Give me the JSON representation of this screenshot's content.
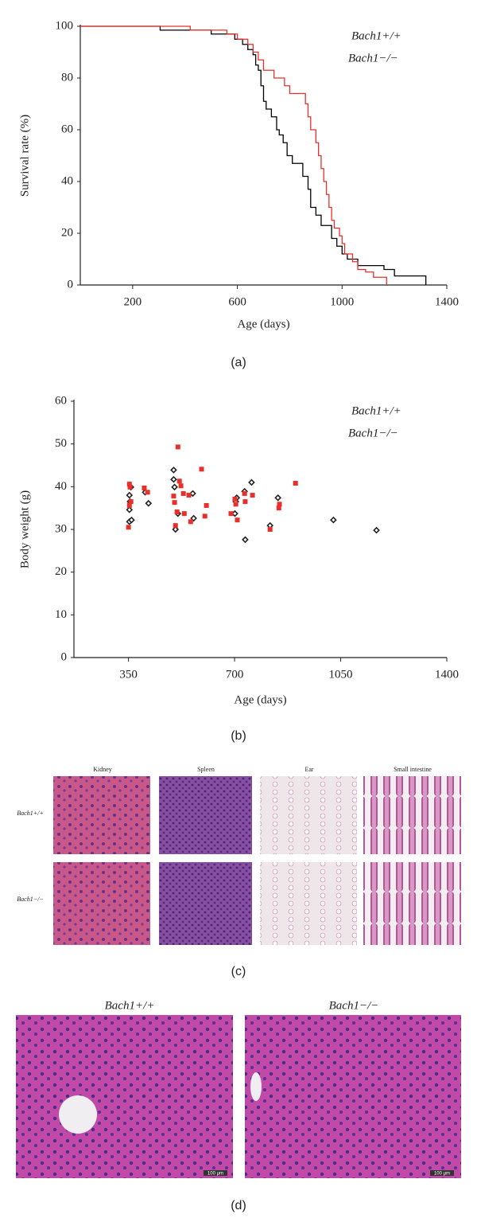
{
  "chart_data": [
    {
      "type": "line",
      "step": true,
      "panel_label": "(a)",
      "x_label": "Age (days)",
      "y_label": "Survival rate (%)",
      "xlim": [
        0,
        1400
      ],
      "xticks": [
        200,
        600,
        1000,
        1400
      ],
      "ylim": [
        0,
        100
      ],
      "yticks": [
        0,
        20,
        40,
        60,
        80,
        100
      ],
      "legend": "upper right",
      "series": [
        {
          "name": "Bach1+/+",
          "color": "#000000",
          "x": [
            0,
            305,
            500,
            590,
            620,
            640,
            660,
            670,
            680,
            690,
            700,
            710,
            730,
            750,
            760,
            775,
            790,
            810,
            850,
            870,
            880,
            900,
            920,
            960,
            980,
            1000,
            1020,
            1060,
            1160,
            1200,
            1320
          ],
          "values": [
            100,
            98.5,
            97,
            95,
            93,
            91,
            89,
            85,
            83,
            77,
            71,
            68,
            65,
            60,
            58,
            55,
            50,
            47,
            42,
            37,
            30,
            27,
            23,
            18,
            15,
            12,
            10,
            7.5,
            6,
            3.5,
            0
          ]
        },
        {
          "name": "Bach1−/−",
          "color": "#e8302a",
          "x": [
            0,
            420,
            560,
            600,
            640,
            660,
            680,
            700,
            740,
            780,
            800,
            860,
            870,
            880,
            900,
            910,
            920,
            930,
            940,
            950,
            960,
            970,
            990,
            1000,
            1010,
            1040,
            1060,
            1090,
            1120,
            1170
          ],
          "values": [
            100,
            98.5,
            97,
            95,
            93,
            90,
            87,
            83,
            80,
            77,
            74,
            70,
            65,
            60,
            55,
            50,
            45,
            40,
            35,
            30,
            25,
            22,
            19,
            16,
            12,
            9,
            6,
            5,
            3,
            0
          ]
        }
      ]
    },
    {
      "type": "scatter",
      "panel_label": "(b)",
      "x_label": "Age (days)",
      "y_label": "Body weight (g)",
      "xlim": [
        170,
        1400
      ],
      "xticks": [
        350,
        700,
        1050,
        1400
      ],
      "ylim": [
        0,
        60
      ],
      "yticks": [
        0,
        10,
        20,
        30,
        40,
        50,
        60
      ],
      "legend": "upper right",
      "series": [
        {
          "name": "Bach1+/+",
          "color": "#222222",
          "marker": "diamond",
          "x": [
            353,
            353,
            353,
            355,
            358,
            360,
            405,
            416,
            499,
            499,
            502,
            505,
            513,
            562,
            565,
            701,
            704,
            707,
            733,
            735,
            756,
            817,
            843,
            1026,
            1168
          ],
          "values": [
            34.6,
            31.8,
            38.0,
            36.5,
            39.9,
            32.2,
            38.7,
            36.1,
            43.9,
            41.7,
            39.9,
            30.0,
            33.7,
            38.4,
            32.6,
            33.7,
            36.5,
            37.4,
            38.9,
            27.6,
            41.0,
            30.9,
            37.4,
            32.2,
            29.8
          ]
        },
        {
          "name": "Bach1−/−",
          "color": "#e8302a",
          "marker": "square",
          "x": [
            350,
            353,
            355,
            358,
            353,
            402,
            413,
            499,
            502,
            505,
            510,
            513,
            518,
            523,
            531,
            534,
            549,
            555,
            591,
            602,
            607,
            688,
            701,
            704,
            709,
            733,
            735,
            759,
            817,
            846,
            848,
            901
          ],
          "values": [
            30.5,
            40.6,
            39.9,
            36.5,
            35.6,
            39.7,
            38.7,
            37.8,
            36.3,
            30.9,
            34.1,
            49.3,
            41.3,
            40.2,
            38.4,
            33.7,
            38.0,
            31.8,
            44.1,
            33.1,
            35.6,
            33.7,
            37.1,
            35.9,
            32.2,
            38.4,
            36.5,
            38.0,
            30.0,
            35.0,
            35.9,
            40.8
          ]
        }
      ]
    }
  ],
  "panel_c": {
    "label": "(c)",
    "columns": [
      "Kidney",
      "Spleen",
      "Ear",
      "Small intestine"
    ],
    "rows": [
      "Bach1+/+",
      "Bach1−/−"
    ]
  },
  "panel_d": {
    "label": "(d)",
    "columns": [
      "Bach1+/+",
      "Bach1−/−"
    ],
    "scale_bar": "100 μm"
  }
}
